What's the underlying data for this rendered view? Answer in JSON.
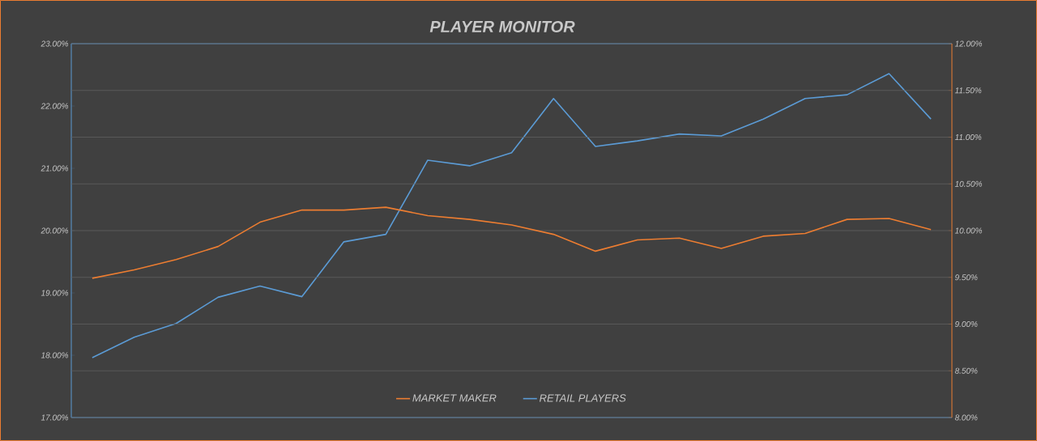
{
  "chart_data": {
    "type": "line",
    "title": "PLAYER MONITOR",
    "categories": [
      null,
      null,
      null,
      null,
      null,
      null,
      null,
      null,
      null,
      null,
      null,
      null,
      null,
      null,
      null,
      null,
      null,
      null,
      null,
      null,
      null
    ],
    "series": [
      {
        "name": "MARKET MAKER",
        "color": "#ed7d31",
        "axis": "y2",
        "values": [
          9.49,
          9.58,
          9.69,
          9.83,
          10.09,
          10.22,
          10.22,
          10.25,
          10.16,
          10.12,
          10.06,
          9.96,
          9.78,
          9.9,
          9.92,
          9.81,
          9.94,
          9.97,
          10.12,
          10.13,
          10.01
        ]
      },
      {
        "name": "RETAIL PLAYERS",
        "color": "#5b9bd5",
        "values": [
          17.96,
          18.29,
          18.51,
          18.93,
          19.11,
          18.94,
          19.82,
          19.94,
          21.13,
          21.04,
          21.25,
          22.12,
          21.35,
          21.44,
          21.55,
          21.52,
          21.79,
          22.12,
          22.18,
          22.52,
          21.79
        ]
      }
    ],
    "ylim": [
      17,
      23
    ],
    "yticks": [
      {
        "value": 17,
        "label": "17.00%"
      },
      {
        "value": 18,
        "label": "18.00%"
      },
      {
        "value": 19,
        "label": "19.00%"
      },
      {
        "value": 20,
        "label": "20.00%"
      },
      {
        "value": 21,
        "label": "21.00%"
      },
      {
        "value": 22,
        "label": "22.00%"
      },
      {
        "value": 23,
        "label": "23.00%"
      }
    ],
    "y2lim": [
      8,
      12
    ],
    "y2ticks": [
      {
        "value": 8,
        "label": "8.00%"
      },
      {
        "value": 8.5,
        "label": "8.50%"
      },
      {
        "value": 9,
        "label": "9.00%"
      },
      {
        "value": 9.5,
        "label": "9.50%"
      },
      {
        "value": 10,
        "label": "10.00%"
      },
      {
        "value": 10.5,
        "label": "10.50%"
      },
      {
        "value": 11,
        "label": "11.00%"
      },
      {
        "value": 11.5,
        "label": "11.50%"
      },
      {
        "value": 12,
        "label": "12.00%"
      }
    ],
    "grid": true,
    "legend": "bottom"
  }
}
